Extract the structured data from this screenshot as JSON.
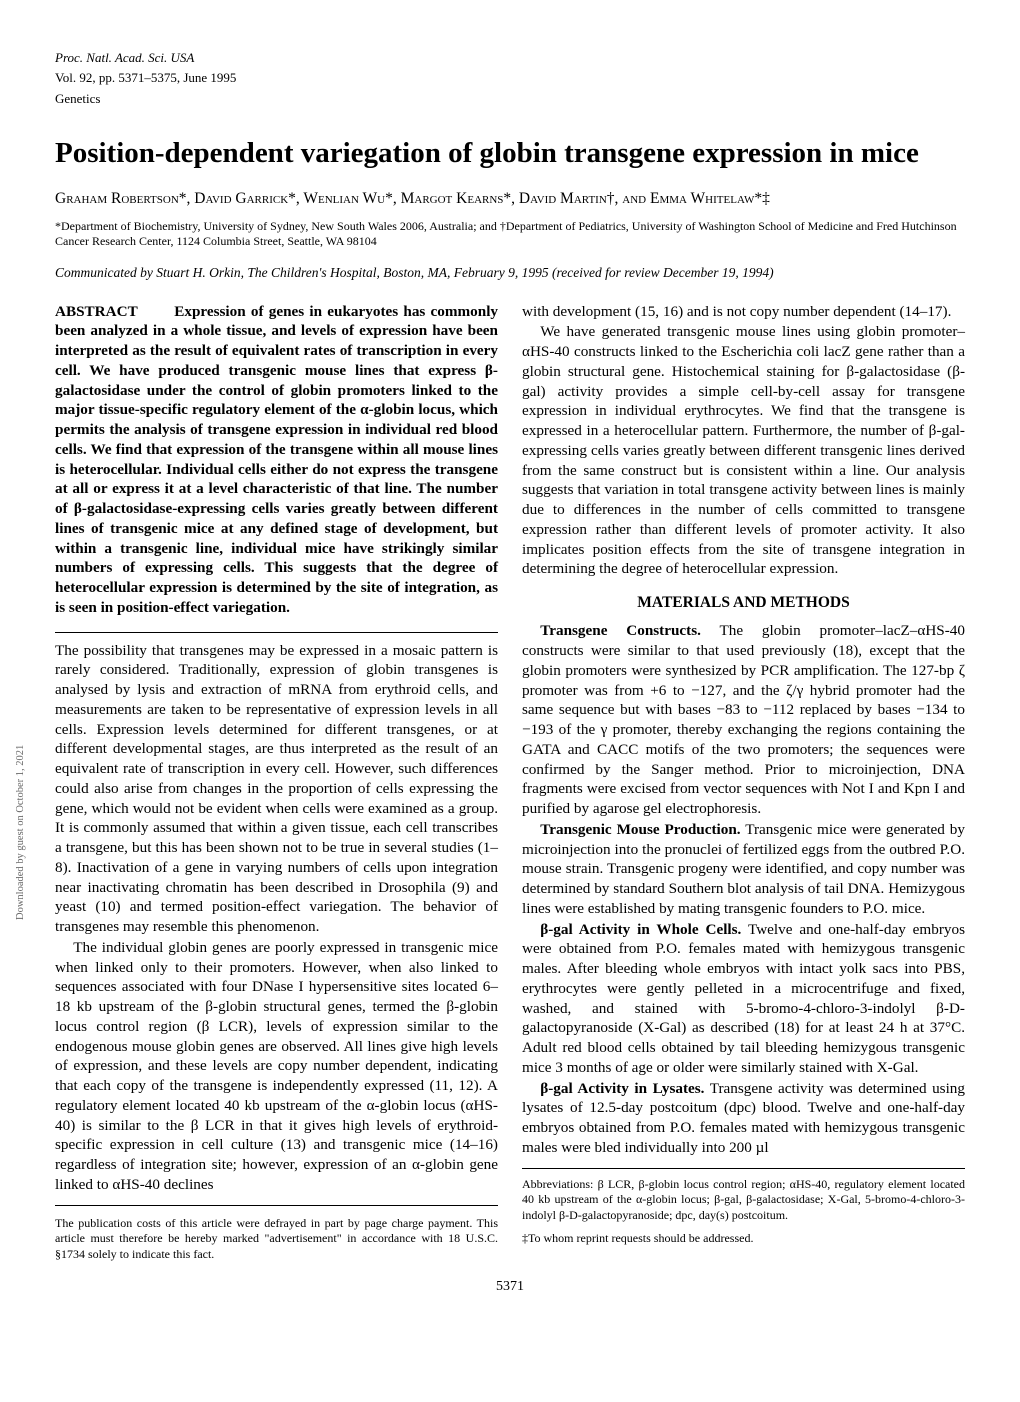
{
  "header": {
    "journal": "Proc. Natl. Acad. Sci. USA",
    "volume_line": "Vol. 92, pp. 5371–5375, June 1995",
    "category": "Genetics"
  },
  "title": "Position-dependent variegation of globin transgene expression in mice",
  "authors": "Graham Robertson*, David Garrick*, Wenlian Wu*, Margot Kearns*, David Martin†, and Emma Whitelaw*‡",
  "affiliations": "*Department of Biochemistry, University of Sydney, New South Wales 2006, Australia; and †Department of Pediatrics, University of Washington School of Medicine and Fred Hutchinson Cancer Research Center, 1124 Columbia Street, Seattle, WA 98104",
  "communicated": "Communicated by Stuart H. Orkin, The Children's Hospital, Boston, MA, February 9, 1995 (received for review December 19, 1994)",
  "abstract": {
    "label": "ABSTRACT",
    "text": "Expression of genes in eukaryotes has commonly been analyzed in a whole tissue, and levels of expression have been interpreted as the result of equivalent rates of transcription in every cell. We have produced transgenic mouse lines that express β-galactosidase under the control of globin promoters linked to the major tissue-specific regulatory element of the α-globin locus, which permits the analysis of transgene expression in individual red blood cells. We find that expression of the transgene within all mouse lines is heterocellular. Individual cells either do not express the transgene at all or express it at a level characteristic of that line. The number of β-galactosidase-expressing cells varies greatly between different lines of transgenic mice at any defined stage of development, but within a transgenic line, individual mice have strikingly similar numbers of expressing cells. This suggests that the degree of heterocellular expression is determined by the site of integration, as is seen in position-effect variegation."
  },
  "intro": {
    "p1": "The possibility that transgenes may be expressed in a mosaic pattern is rarely considered. Traditionally, expression of globin transgenes is analysed by lysis and extraction of mRNA from erythroid cells, and measurements are taken to be representative of expression levels in all cells. Expression levels determined for different transgenes, or at different developmental stages, are thus interpreted as the result of an equivalent rate of transcription in every cell. However, such differences could also arise from changes in the proportion of cells expressing the gene, which would not be evident when cells were examined as a group. It is commonly assumed that within a given tissue, each cell transcribes a transgene, but this has been shown not to be true in several studies (1–8). Inactivation of a gene in varying numbers of cells upon integration near inactivating chromatin has been described in Drosophila (9) and yeast (10) and termed position-effect variegation. The behavior of transgenes may resemble this phenomenon.",
    "p2": "The individual globin genes are poorly expressed in transgenic mice when linked only to their promoters. However, when also linked to sequences associated with four DNase I hypersensitive sites located 6–18 kb upstream of the β-globin structural genes, termed the β-globin locus control region (β LCR), levels of expression similar to the endogenous mouse globin genes are observed. All lines give high levels of expression, and these levels are copy number dependent, indicating that each copy of the transgene is independently expressed (11, 12). A regulatory element located 40 kb upstream of the α-globin locus (αHS-40) is similar to the β LCR in that it gives high levels of erythroid-specific expression in cell culture (13) and transgenic mice (14–16) regardless of integration site; however, expression of an α-globin gene linked to αHS-40 declines",
    "p3": "with development (15, 16) and is not copy number dependent (14–17).",
    "p4": "We have generated transgenic mouse lines using globin promoter–αHS-40 constructs linked to the Escherichia coli lacZ gene rather than a globin structural gene. Histochemical staining for β-galactosidase (β-gal) activity provides a simple cell-by-cell assay for transgene expression in individual erythrocytes. We find that the transgene is expressed in a heterocellular pattern. Furthermore, the number of β-gal-expressing cells varies greatly between different transgenic lines derived from the same construct but is consistent within a line. Our analysis suggests that variation in total transgene activity between lines is mainly due to differences in the number of cells committed to transgene expression rather than different levels of promoter activity. It also implicates position effects from the site of transgene integration in determining the degree of heterocellular expression."
  },
  "methods": {
    "heading": "MATERIALS AND METHODS",
    "constructs_label": "Transgene Constructs.",
    "constructs_text": " The globin promoter–lacZ–αHS-40 constructs were similar to that used previously (18), except that the globin promoters were synthesized by PCR amplification. The 127-bp ζ promoter was from +6 to −127, and the ζ/γ hybrid promoter had the same sequence but with bases −83 to −112 replaced by bases −134 to −193 of the γ promoter, thereby exchanging the regions containing the GATA and CACC motifs of the two promoters; the sequences were confirmed by the Sanger method. Prior to microinjection, DNA fragments were excised from vector sequences with Not I and Kpn I and purified by agarose gel electrophoresis.",
    "mouse_label": "Transgenic Mouse Production.",
    "mouse_text": " Transgenic mice were generated by microinjection into the pronuclei of fertilized eggs from the outbred P.O. mouse strain. Transgenic progeny were identified, and copy number was determined by standard Southern blot analysis of tail DNA. Hemizygous lines were established by mating transgenic founders to P.O. mice.",
    "bgal_cells_label": "β-gal Activity in Whole Cells.",
    "bgal_cells_text": " Twelve and one-half-day embryos were obtained from P.O. females mated with hemizygous transgenic males. After bleeding whole embryos with intact yolk sacs into PBS, erythrocytes were gently pelleted in a microcentrifuge and fixed, washed, and stained with 5-bromo-4-chloro-3-indolyl β-D-galactopyranoside (X-Gal) as described (18) for at least 24 h at 37°C. Adult red blood cells obtained by tail bleeding hemizygous transgenic mice 3 months of age or older were similarly stained with X-Gal.",
    "bgal_lysates_label": "β-gal Activity in Lysates.",
    "bgal_lysates_text": " Transgene activity was determined using lysates of 12.5-day postcoitum (dpc) blood. Twelve and one-half-day embryos obtained from P.O. females mated with hemizygous transgenic males were bled individually into 200 µl"
  },
  "footer": {
    "pubcost": "The publication costs of this article were defrayed in part by page charge payment. This article must therefore be hereby marked \"advertisement\" in accordance with 18 U.S.C. §1734 solely to indicate this fact.",
    "abbrev": "Abbreviations: β LCR, β-globin locus control region; αHS-40, regulatory element located 40 kb upstream of the α-globin locus; β-gal, β-galactosidase; X-Gal, 5-bromo-4-chloro-3-indolyl β-D-galactopyranoside; dpc, day(s) postcoitum.",
    "corr": "‡To whom reprint requests should be addressed."
  },
  "pagenum": "5371",
  "sidebar": "Downloaded by guest on October 1, 2021"
}
